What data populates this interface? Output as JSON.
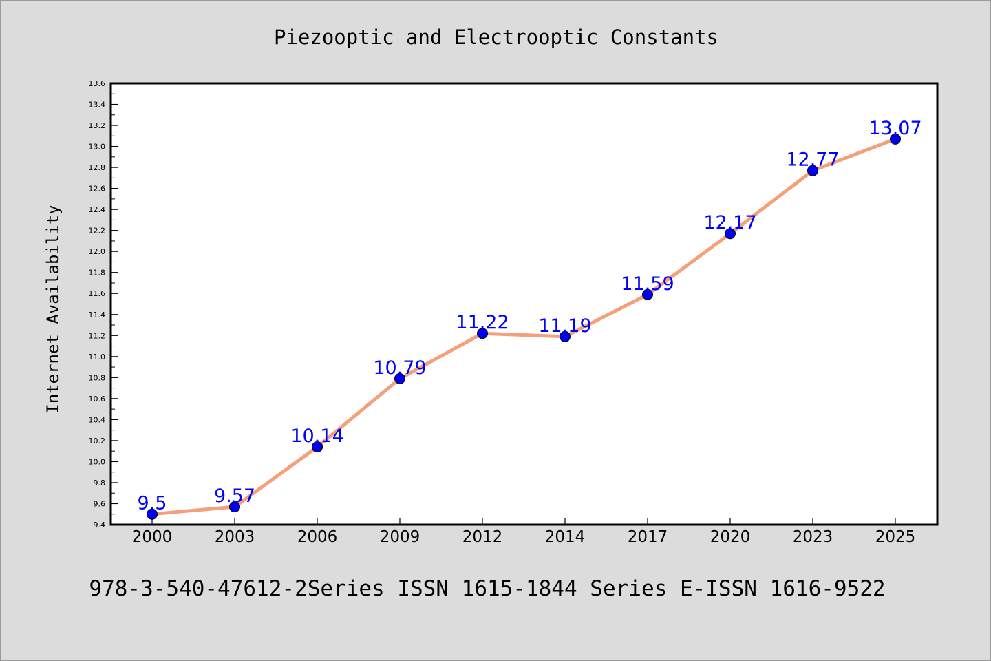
{
  "chart_data": {
    "type": "line",
    "title": "Piezooptic and Electrooptic Constants",
    "xlabel": "",
    "ylabel": "Internet Availability",
    "footer": "978-3-540-47612-2Series ISSN 1615-1844 Series E-ISSN 1616-9522",
    "categories": [
      "2000",
      "2003",
      "2006",
      "2009",
      "2012",
      "2014",
      "2017",
      "2020",
      "2023",
      "2025"
    ],
    "values": [
      9.5,
      9.57,
      10.14,
      10.79,
      11.22,
      11.19,
      11.59,
      12.17,
      12.77,
      13.07
    ],
    "data_labels": [
      "9.5",
      "9.57",
      "10.14",
      "10.79",
      "11.22",
      "11.19",
      "11.59",
      "12.17",
      "12.77",
      "13.07"
    ],
    "ylim": [
      9.4,
      13.6
    ],
    "yticks": [
      "9.4",
      "9.6",
      "9.8",
      "10.0",
      "10.2",
      "10.4",
      "10.6",
      "10.8",
      "11.0",
      "11.2",
      "11.4",
      "11.6",
      "11.8",
      "12.0",
      "12.2",
      "12.4",
      "12.6",
      "12.8",
      "13.0",
      "13.2",
      "13.4",
      "13.6"
    ],
    "grid": false,
    "colors": {
      "line": "#f4a07a",
      "marker": "#0000ee",
      "data_label": "#0000ff",
      "background": "#dcdcdc",
      "plot_background": "#ffffff"
    }
  }
}
